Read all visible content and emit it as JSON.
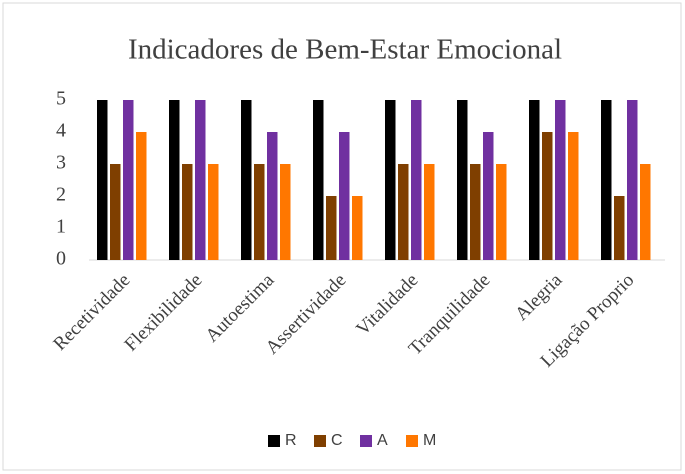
{
  "chart_data": {
    "type": "bar",
    "title": "Indicadores de Bem-Estar Emocional",
    "categories": [
      "Recetividade",
      "Flexibilidade",
      "Autoestima",
      "Assertividade",
      "Vitalidade",
      "Tranquilidade",
      "Alegria",
      "Ligação Proprio"
    ],
    "series": [
      {
        "name": "R",
        "color": "#000000",
        "values": [
          5,
          5,
          5,
          5,
          5,
          5,
          5,
          5
        ]
      },
      {
        "name": "C",
        "color": "#7f3f00",
        "values": [
          3,
          3,
          3,
          2,
          3,
          3,
          4,
          2
        ]
      },
      {
        "name": "A",
        "color": "#7030a0",
        "values": [
          5,
          5,
          4,
          4,
          5,
          4,
          5,
          5
        ]
      },
      {
        "name": "M",
        "color": "#ff7700",
        "values": [
          4,
          3,
          3,
          2,
          3,
          3,
          4,
          3
        ]
      }
    ],
    "ylim": [
      0,
      5
    ],
    "yticks": [
      0,
      1,
      2,
      3,
      4,
      5
    ],
    "grid": false,
    "legend": "bottom"
  }
}
